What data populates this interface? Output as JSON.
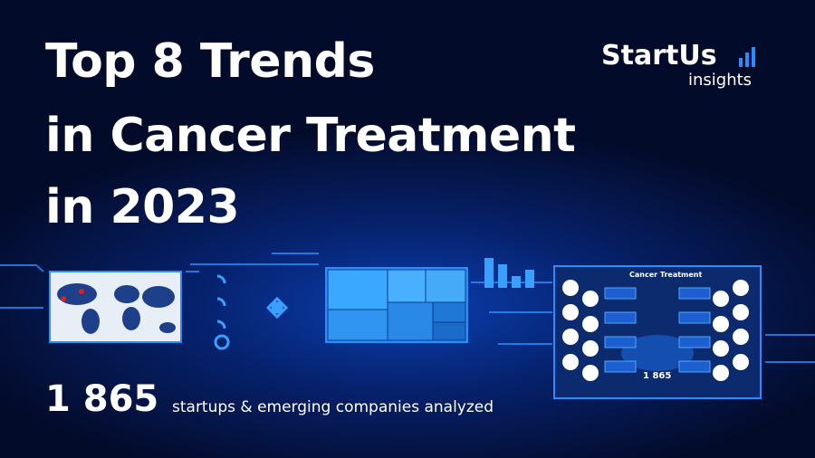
{
  "header": {
    "title_lines": [
      "Top 8 Trends",
      "in Cancer Treatment",
      "in 2023"
    ]
  },
  "logo": {
    "name": "StartUs",
    "tagline": "insights"
  },
  "stats": {
    "count": "1 865",
    "caption": "startups & emerging companies analyzed"
  },
  "infographic": {
    "title": "Cancer Treatment",
    "count": "1 865"
  }
}
